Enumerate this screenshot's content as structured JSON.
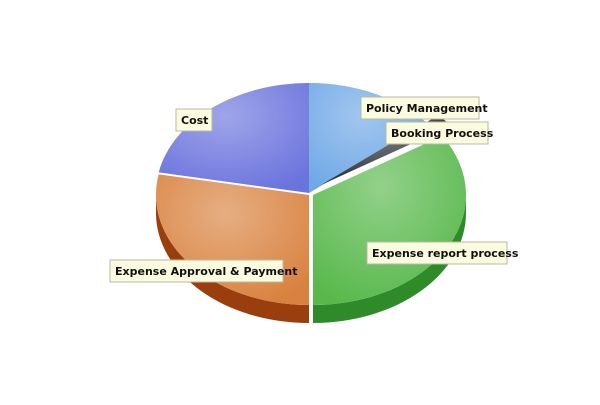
{
  "chart_data": {
    "type": "pie",
    "title": "",
    "series": [
      {
        "name": "Policy Management",
        "value": 14,
        "color": "#6fa8e6",
        "side": "#3f78b6"
      },
      {
        "name": "Booking Process",
        "value": 2,
        "color": "#2b2f36",
        "side": "#15181c"
      },
      {
        "name": "Expense report process",
        "value": 34,
        "color": "#58b84b",
        "side": "#2f8a2a"
      },
      {
        "name": "Expense Approval & Payment",
        "value": 28,
        "color": "#d9823f",
        "side": "#9a3e0d"
      },
      {
        "name": "Cost",
        "value": 22,
        "color": "#6b74dd",
        "side": "#3b44ad"
      }
    ],
    "style": "3d-exploded-pie",
    "labels": "callout-boxes"
  }
}
